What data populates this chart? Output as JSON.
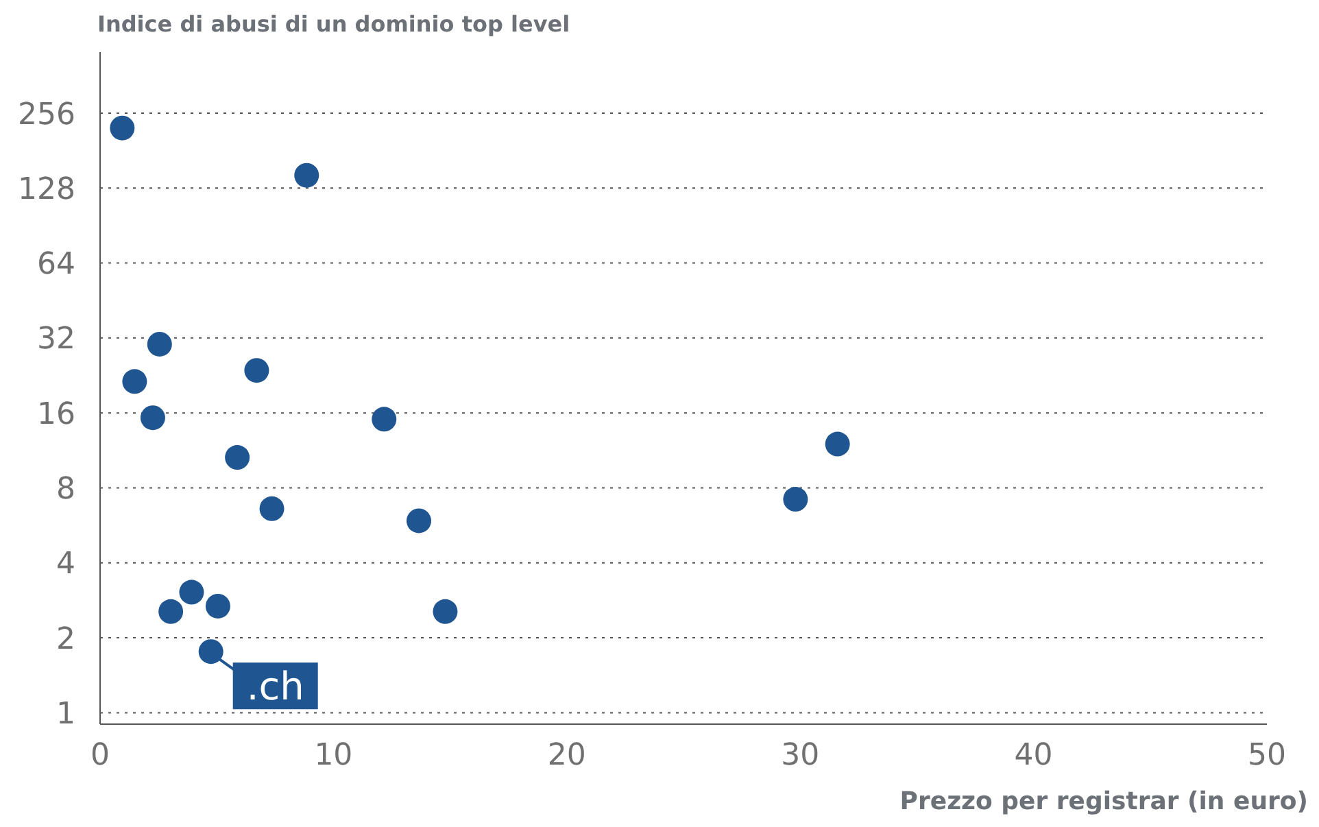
{
  "chart_data": {
    "type": "scatter",
    "xlabel": "Prezzo per registrar (in euro)",
    "ylabel": "Indice di abusi di un dominio top level",
    "x": [
      0.95,
      8.85,
      2.55,
      1.48,
      2.26,
      6.71,
      5.88,
      7.36,
      12.17,
      13.66,
      14.79,
      3.92,
      3.03,
      5.05,
      4.75,
      29.8,
      31.6
    ],
    "series": [
      {
        "color": "#1f5591",
        "values": [
          223,
          144,
          30.2,
          21.4,
          15.3,
          23.7,
          10.6,
          6.6,
          15.1,
          5.9,
          2.55,
          3.05,
          2.55,
          2.68,
          1.76,
          7.2,
          12.0
        ]
      }
    ],
    "log": "y",
    "xlim": [
      0,
      50
    ],
    "xticks": [
      0,
      10,
      20,
      30,
      40,
      50
    ],
    "ylim": [
      0.9,
      450
    ],
    "yticks": [
      1,
      2,
      4,
      8,
      16,
      32,
      64,
      128,
      256
    ],
    "grid": "y",
    "marker": "circle",
    "annotations": [
      {
        "text": ".ch",
        "x": 4.75,
        "y": 1.76
      }
    ]
  }
}
